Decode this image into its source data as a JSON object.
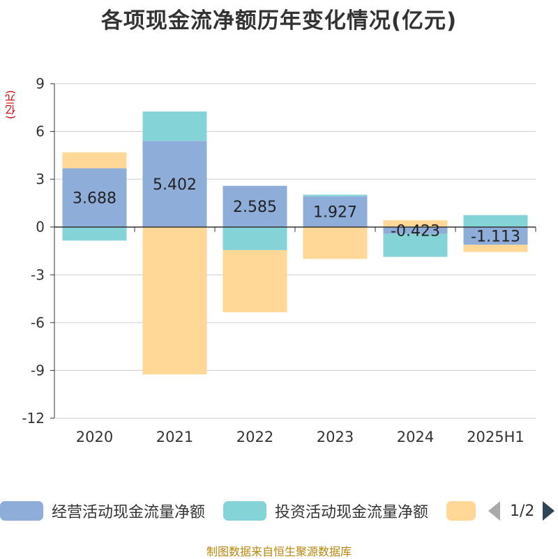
{
  "title": "各项现金流净额历年变化情况(亿元)",
  "unit_label": "(亿元)",
  "source": "制图数据来自恒生聚源数据库",
  "legend": {
    "items": [
      {
        "label": "经营活动现金流量净额",
        "color": "#8eadd9"
      },
      {
        "label": "投资活动现金流量净额",
        "color": "#84d3d7"
      },
      {
        "label": "",
        "color": "#ffd796"
      }
    ],
    "page_text": "1/2"
  },
  "chart_data": {
    "type": "bar",
    "stacked": true,
    "categories": [
      "2020",
      "2021",
      "2022",
      "2023",
      "2024",
      "2025H1"
    ],
    "ylim": [
      -12,
      9
    ],
    "yticks": [
      9,
      6,
      3,
      0,
      -3,
      -6,
      -9,
      -12
    ],
    "grid": true,
    "legend_position": "bottom",
    "series": [
      {
        "name": "经营活动现金流量净额",
        "color": "#8eadd9",
        "values": [
          3.688,
          5.402,
          2.585,
          1.927,
          -0.423,
          -1.113
        ],
        "labels": [
          "3.688",
          "5.402",
          "2.585",
          "1.927",
          "-0.423",
          "-1.113"
        ]
      },
      {
        "name": "投资活动现金流量净额",
        "color": "#84d3d7",
        "values": [
          -0.85,
          1.85,
          -1.45,
          0.1,
          -1.45,
          0.75
        ]
      },
      {
        "name": "",
        "color": "#ffd796",
        "values": [
          1.0,
          -9.25,
          -3.9,
          -2.0,
          0.42,
          -0.45
        ]
      }
    ]
  }
}
